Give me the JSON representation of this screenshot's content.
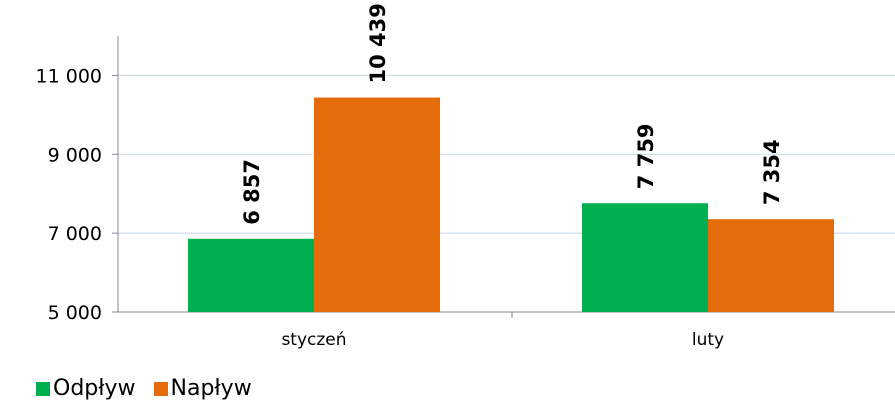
{
  "chart_data": {
    "type": "bar",
    "categories": [
      "styczeń",
      "luty"
    ],
    "series": [
      {
        "name": "Odpływ",
        "values": [
          6857,
          7759
        ],
        "labels": [
          "6 857",
          "7 759"
        ],
        "color": "#00b050"
      },
      {
        "name": "Napływ",
        "values": [
          10439,
          7354
        ],
        "labels": [
          "10 439",
          "7 354"
        ],
        "color": "#e46c0a"
      }
    ],
    "ylim": [
      5000,
      12000
    ],
    "yticks": [
      5000,
      7000,
      9000,
      11000
    ],
    "ytick_labels": [
      "5 000",
      "7 000",
      "9 000",
      "11 000"
    ],
    "grid": true,
    "gridline_color": "#c7d7ea",
    "legend_position": "bottom-left"
  }
}
